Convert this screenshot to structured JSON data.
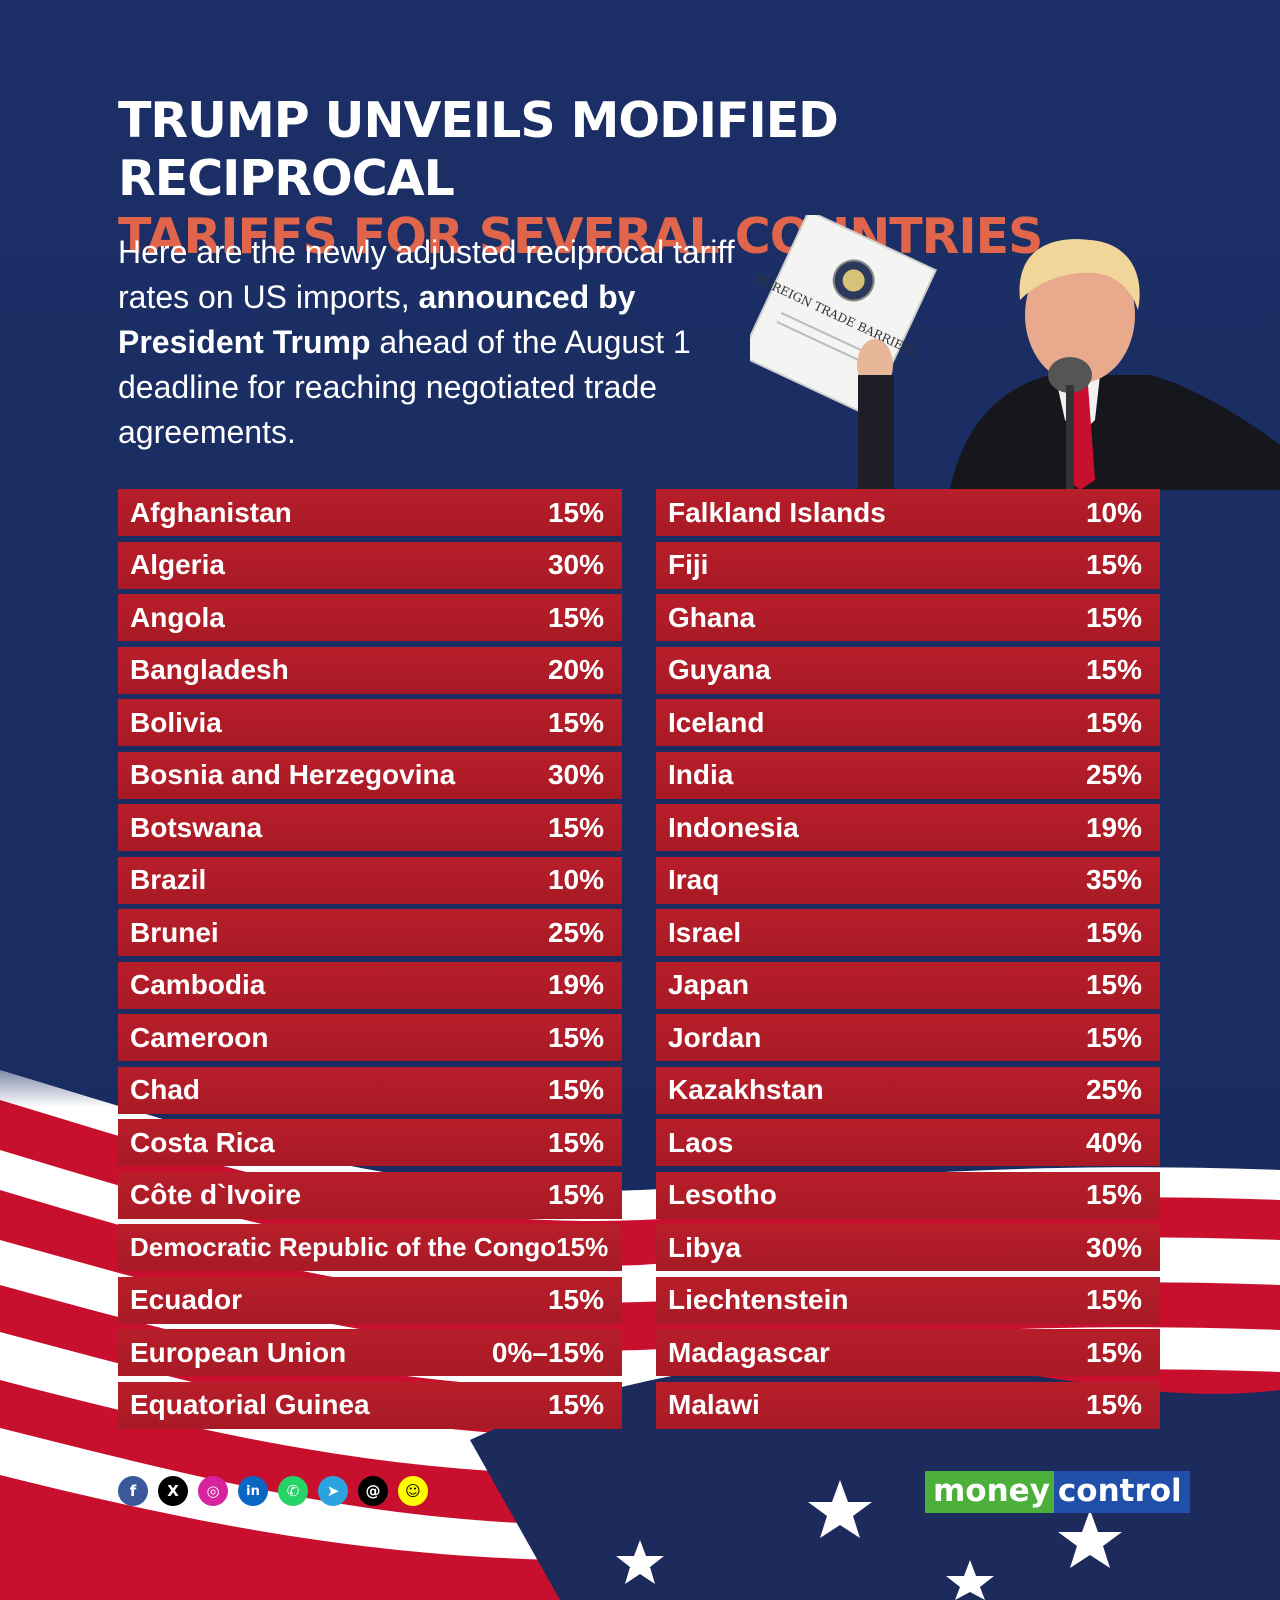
{
  "title": {
    "line1": "TRUMP UNVEILS MODIFIED RECIPROCAL",
    "line2": "TARIFFS FOR SEVERAL COUNTRIES"
  },
  "intro": {
    "part1": "Here are the newly adjusted reciprocal tariff rates on US imports, ",
    "bold": "announced by President Trump",
    "part2": " ahead of the August 1 deadline for reaching negotiated trade agreements."
  },
  "photo": {
    "booklet_title": "FOREIGN TRADE BARRIERS"
  },
  "table_left": [
    {
      "country": "Afghanistan",
      "rate": "15%"
    },
    {
      "country": "Algeria",
      "rate": "30%"
    },
    {
      "country": "Angola",
      "rate": "15%"
    },
    {
      "country": "Bangladesh",
      "rate": "20%"
    },
    {
      "country": "Bolivia",
      "rate": "15%"
    },
    {
      "country": "Bosnia and Herzegovina",
      "rate": "30%"
    },
    {
      "country": "Botswana",
      "rate": "15%"
    },
    {
      "country": "Brazil",
      "rate": "10%"
    },
    {
      "country": "Brunei",
      "rate": "25%"
    },
    {
      "country": "Cambodia",
      "rate": "19%"
    },
    {
      "country": "Cameroon",
      "rate": "15%"
    },
    {
      "country": "Chad",
      "rate": "15%"
    },
    {
      "country": "Costa Rica",
      "rate": "15%"
    },
    {
      "country": "Côte d`Ivoire",
      "rate": "15%"
    },
    {
      "country": "Democratic Republic of the Congo",
      "rate": "15%"
    },
    {
      "country": "Ecuador",
      "rate": "15%"
    },
    {
      "country": "European Union",
      "rate": "0%–15%"
    },
    {
      "country": "Equatorial Guinea",
      "rate": "15%"
    }
  ],
  "table_right": [
    {
      "country": "Falkland Islands",
      "rate": "10%"
    },
    {
      "country": "Fiji",
      "rate": "15%"
    },
    {
      "country": "Ghana",
      "rate": "15%"
    },
    {
      "country": "Guyana",
      "rate": "15%"
    },
    {
      "country": "Iceland",
      "rate": "15%"
    },
    {
      "country": "India",
      "rate": "25%"
    },
    {
      "country": "Indonesia",
      "rate": "19%"
    },
    {
      "country": "Iraq",
      "rate": "35%"
    },
    {
      "country": "Israel",
      "rate": "15%"
    },
    {
      "country": "Japan",
      "rate": "15%"
    },
    {
      "country": "Jordan",
      "rate": "15%"
    },
    {
      "country": "Kazakhstan",
      "rate": "25%"
    },
    {
      "country": "Laos",
      "rate": "40%"
    },
    {
      "country": "Lesotho",
      "rate": "15%"
    },
    {
      "country": "Libya",
      "rate": "30%"
    },
    {
      "country": "Liechtenstein",
      "rate": "15%"
    },
    {
      "country": "Madagascar",
      "rate": "15%"
    },
    {
      "country": "Malawi",
      "rate": "15%"
    }
  ],
  "social": [
    {
      "name": "facebook-icon",
      "glyph": "f",
      "color": "#3b5998"
    },
    {
      "name": "x-icon",
      "glyph": "X",
      "color": "#000000"
    },
    {
      "name": "instagram-icon",
      "glyph": "◎",
      "color": "#d6249f"
    },
    {
      "name": "linkedin-icon",
      "glyph": "in",
      "color": "#0a66c2"
    },
    {
      "name": "whatsapp-icon",
      "glyph": "✆",
      "color": "#25d366"
    },
    {
      "name": "telegram-icon",
      "glyph": "➤",
      "color": "#2aa3de"
    },
    {
      "name": "threads-icon",
      "glyph": "@",
      "color": "#000000"
    },
    {
      "name": "snapchat-icon",
      "glyph": "☺",
      "color": "#fffc00"
    }
  ],
  "logo": {
    "part1": "money",
    "part2": "control"
  },
  "colors": {
    "background": "#1b2f66",
    "accent": "#e0654a",
    "row": "#b81e2a"
  }
}
